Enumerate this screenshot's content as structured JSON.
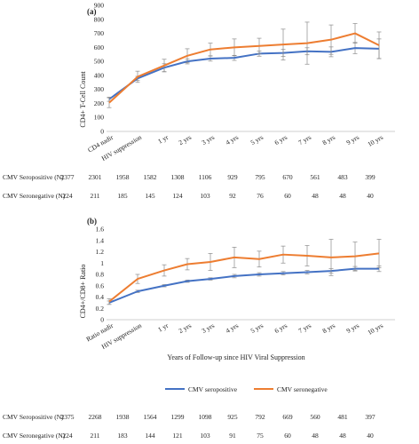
{
  "colors": {
    "seropositive": "#4472c4",
    "seronegative": "#ed7d31",
    "error": "#8c8c8c"
  },
  "chart_data": [
    {
      "type": "line",
      "panel_label": "(a)",
      "ylabel": "CD4+ T-Cell Count",
      "ylim": [
        0,
        900
      ],
      "yticks": [
        0,
        100,
        200,
        300,
        400,
        500,
        600,
        700,
        800,
        900
      ],
      "grid": false,
      "categories": [
        "CD4 nadir",
        "HIV suppression",
        "1 yr",
        "2 yrs",
        "3 yrs",
        "4 yrs",
        "5 yrs",
        "6 yrs",
        "7 yrs",
        "8 yrs",
        "9 yrs",
        "10 yrs"
      ],
      "series": [
        {
          "key": "seropositive",
          "values": [
            230,
            378,
            455,
            500,
            520,
            525,
            555,
            560,
            572,
            568,
            595,
            590
          ],
          "err": [
            15,
            15,
            28,
            18,
            18,
            18,
            18,
            25,
            25,
            35,
            40,
            70
          ]
        },
        {
          "key": "seronegative",
          "values": [
            205,
            390,
            470,
            540,
            585,
            600,
            610,
            620,
            630,
            655,
            700,
            615
          ],
          "err": [
            35,
            40,
            45,
            50,
            45,
            60,
            55,
            110,
            150,
            105,
            70,
            95
          ]
        }
      ],
      "n_rows": [
        {
          "label": "CMV Seropositive (N)",
          "values": [
            "2377",
            "2301",
            "1958",
            "1582",
            "1308",
            "1106",
            "929",
            "795",
            "670",
            "561",
            "483",
            "399"
          ]
        },
        {
          "label": "CMV Seronegative (N)",
          "values": [
            "224",
            "211",
            "185",
            "145",
            "124",
            "103",
            "92",
            "76",
            "60",
            "48",
            "48",
            "40"
          ]
        }
      ]
    },
    {
      "type": "line",
      "panel_label": "(b)",
      "ylabel": "CD4+/CD8+ Ratio",
      "xlabel": "Years of Follow-up since HIV Viral Suppression",
      "ylim": [
        0,
        1.6
      ],
      "yticks": [
        "0",
        "0.2",
        "0.4",
        "0.6",
        "0.8",
        "1",
        "1.2",
        "1.4",
        "1.6"
      ],
      "grid": false,
      "legend_position": "bottom",
      "categories": [
        "Ratio nadir",
        "HIV suppression",
        "1 yr",
        "2 yrs",
        "3 yrs",
        "4 yrs",
        "5 yrs",
        "6 yrs",
        "7 yrs",
        "8 yrs",
        "9 yrs",
        "10 yrs"
      ],
      "series": [
        {
          "key": "seropositive",
          "name": "CMV seropositive",
          "values": [
            0.3,
            0.5,
            0.6,
            0.68,
            0.72,
            0.77,
            0.8,
            0.82,
            0.84,
            0.86,
            0.9,
            0.9
          ],
          "err": [
            0.03,
            0.02,
            0.02,
            0.02,
            0.02,
            0.03,
            0.03,
            0.03,
            0.03,
            0.04,
            0.04,
            0.05
          ]
        },
        {
          "key": "seronegative",
          "name": "CMV seronegative",
          "values": [
            0.32,
            0.72,
            0.87,
            0.98,
            1.02,
            1.1,
            1.07,
            1.15,
            1.13,
            1.1,
            1.12,
            1.17
          ],
          "err": [
            0.05,
            0.08,
            0.1,
            0.1,
            0.15,
            0.18,
            0.14,
            0.15,
            0.18,
            0.32,
            0.25,
            0.25
          ]
        }
      ],
      "n_rows": [
        {
          "label": "CMV Seropositive (N)",
          "values": [
            "2375",
            "2268",
            "1938",
            "1564",
            "1299",
            "1098",
            "925",
            "792",
            "669",
            "560",
            "481",
            "397"
          ]
        },
        {
          "label": "CMV Seronegative (N)",
          "values": [
            "224",
            "211",
            "183",
            "144",
            "121",
            "103",
            "91",
            "75",
            "60",
            "48",
            "48",
            "40"
          ]
        }
      ]
    }
  ]
}
